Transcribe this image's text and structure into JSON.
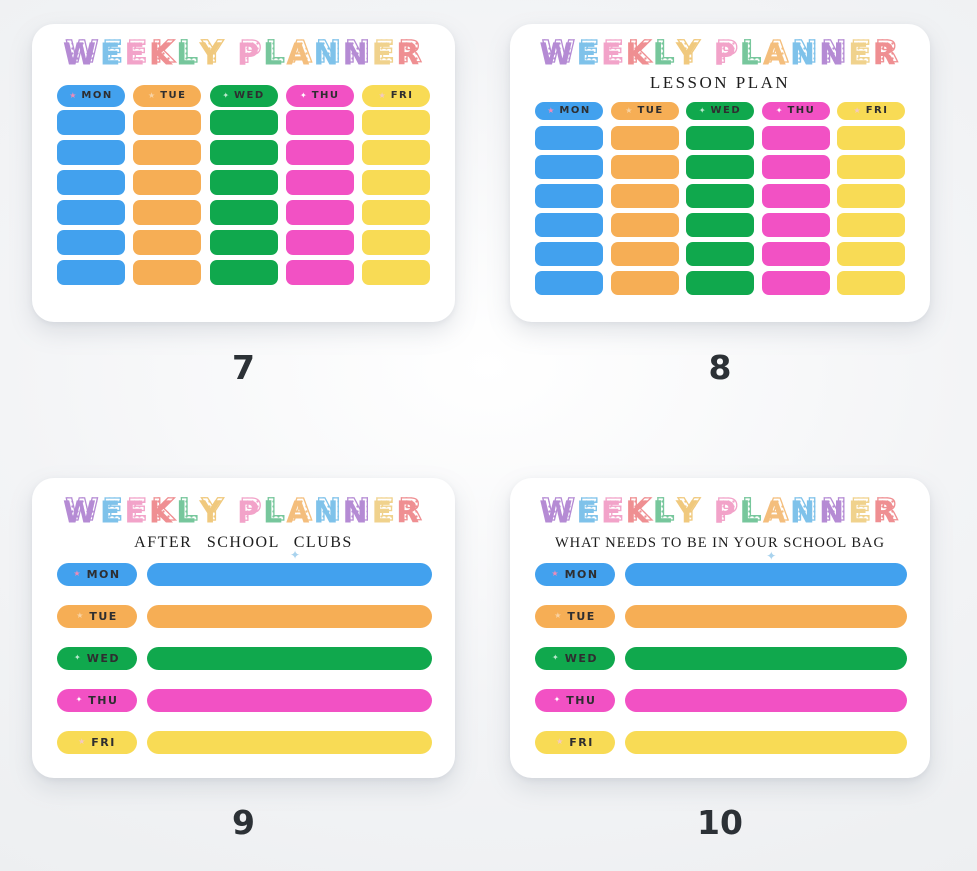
{
  "page": {
    "background": "#f0f2f4",
    "card_background": "#ffffff"
  },
  "title": {
    "text": "WEEKLY PLANNER",
    "word1": [
      {
        "ch": "W",
        "c": "#b58bd4"
      },
      {
        "ch": "E",
        "c": "#7fc2ea"
      },
      {
        "ch": "E",
        "c": "#f2a3c9"
      },
      {
        "ch": "K",
        "c": "#ef8f92"
      },
      {
        "ch": "L",
        "c": "#77c79c"
      },
      {
        "ch": "Y",
        "c": "#f0c97e"
      }
    ],
    "word2": [
      {
        "ch": "P",
        "c": "#f2a3c9"
      },
      {
        "ch": "L",
        "c": "#77c79c"
      },
      {
        "ch": "A",
        "c": "#f4be7d"
      },
      {
        "ch": "N",
        "c": "#7fc2ea"
      },
      {
        "ch": "N",
        "c": "#b58bd4"
      },
      {
        "ch": "E",
        "c": "#f0d28d"
      },
      {
        "ch": "R",
        "c": "#ef8f92"
      }
    ]
  },
  "days": [
    {
      "label": "MON",
      "color": "#42A1EE",
      "star": "★",
      "star_color": "#F08BB8"
    },
    {
      "label": "TUE",
      "color": "#F6AE55",
      "star": "★",
      "star_color": "#F8D3A4"
    },
    {
      "label": "WED",
      "color": "#10A84D",
      "star": "✦",
      "star_color": "#BCE9CF"
    },
    {
      "label": "THU",
      "color": "#F251C4",
      "star": "✦",
      "star_color": "#FFFFFF"
    },
    {
      "label": "FRI",
      "color": "#F8DB55",
      "star": "★",
      "star_color": "#F3C9C2"
    }
  ],
  "planners": [
    {
      "number": "7",
      "subtitle": "",
      "layout": "grid",
      "grid_rows": 6
    },
    {
      "number": "8",
      "subtitle": "LESSON PLAN",
      "layout": "grid",
      "grid_rows": 6
    },
    {
      "number": "9",
      "subtitle": "AFTER SCHOOL CLUBS",
      "layout": "list",
      "sparkle": "✦"
    },
    {
      "number": "10",
      "subtitle": "WHAT NEEDS TO BE IN YOUR SCHOOL BAG",
      "layout": "list",
      "sparkle": "✦"
    }
  ]
}
